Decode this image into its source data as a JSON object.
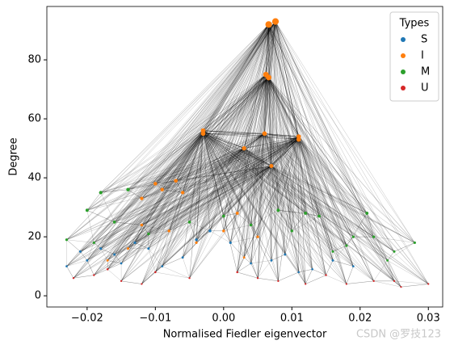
{
  "chart_data": {
    "type": "scatter",
    "xlabel": "Normalised Fiedler eigenvector",
    "ylabel": "Degree",
    "legend_title": "Types",
    "legend_loc": "upper right",
    "watermark": "CSDN @罗技123",
    "xlim": [
      -0.0259,
      0.0321
    ],
    "ylim": [
      -3.8,
      98.1
    ],
    "xticks": [
      {
        "value": -0.02,
        "label": "−0.02"
      },
      {
        "value": -0.01,
        "label": "−0.01"
      },
      {
        "value": 0,
        "label": "0.00"
      },
      {
        "value": 0.01,
        "label": "0.01"
      },
      {
        "value": 0.02,
        "label": "0.02"
      },
      {
        "value": 0.03,
        "label": "0.03"
      }
    ],
    "yticks": [
      0,
      20,
      40,
      60,
      80
    ],
    "series": [
      {
        "name": "S",
        "color": "#1f77b4",
        "x": [
          -0.023,
          -0.02,
          -0.018,
          -0.016,
          -0.013,
          -0.011,
          -0.009,
          -0.006,
          -0.002,
          0.001,
          0.004,
          0.009,
          0.013,
          0.016,
          -0.021,
          -0.015,
          -0.004,
          0.007,
          0.011,
          0.019
        ],
        "y": [
          10,
          12,
          16,
          14,
          18,
          16,
          10,
          13,
          22,
          18,
          11,
          14,
          9,
          12,
          15,
          11,
          19,
          12,
          8,
          10
        ]
      },
      {
        "name": "I",
        "color": "#ff7f0e",
        "x": [
          0.0066,
          0.0076,
          0.0062,
          0.0066,
          -0.003,
          -0.003,
          0.006,
          0.011,
          0.011,
          0.003,
          0.007,
          -0.01,
          -0.007,
          -0.009,
          -0.012,
          -0.006,
          0.002,
          0.0,
          -0.012,
          -0.008,
          0.005,
          -0.014,
          -0.004,
          0.003,
          -0.017
        ],
        "y": [
          92,
          93,
          75,
          74,
          55,
          56,
          55,
          54,
          53,
          50,
          44,
          38,
          39,
          36,
          33,
          35,
          28,
          22,
          24,
          22,
          20,
          16,
          18,
          13,
          12
        ]
      },
      {
        "name": "M",
        "color": "#2ca02c",
        "x": [
          -0.018,
          -0.014,
          -0.02,
          -0.023,
          0.021,
          0.028,
          0.014,
          0.012,
          0.024,
          0.019,
          -0.016,
          0.01,
          0.016,
          0.022,
          -0.005,
          0.008,
          -0.011,
          0.0,
          0.025,
          0.004,
          -0.019,
          0.018
        ],
        "y": [
          35,
          36,
          29,
          19,
          28,
          18,
          27,
          28,
          12,
          20,
          25,
          22,
          15,
          20,
          25,
          29,
          21,
          27,
          15,
          24,
          18,
          17
        ]
      },
      {
        "name": "U",
        "color": "#d62728",
        "x": [
          -0.022,
          -0.019,
          -0.015,
          -0.01,
          -0.005,
          0.002,
          0.008,
          0.012,
          0.018,
          0.022,
          0.026,
          0.03,
          0.025,
          -0.012,
          0.015,
          -0.017,
          0.005
        ],
        "y": [
          6,
          7,
          5,
          8,
          6,
          8,
          5,
          4,
          4,
          5,
          3,
          4,
          5,
          4,
          7,
          9,
          6
        ]
      }
    ]
  }
}
